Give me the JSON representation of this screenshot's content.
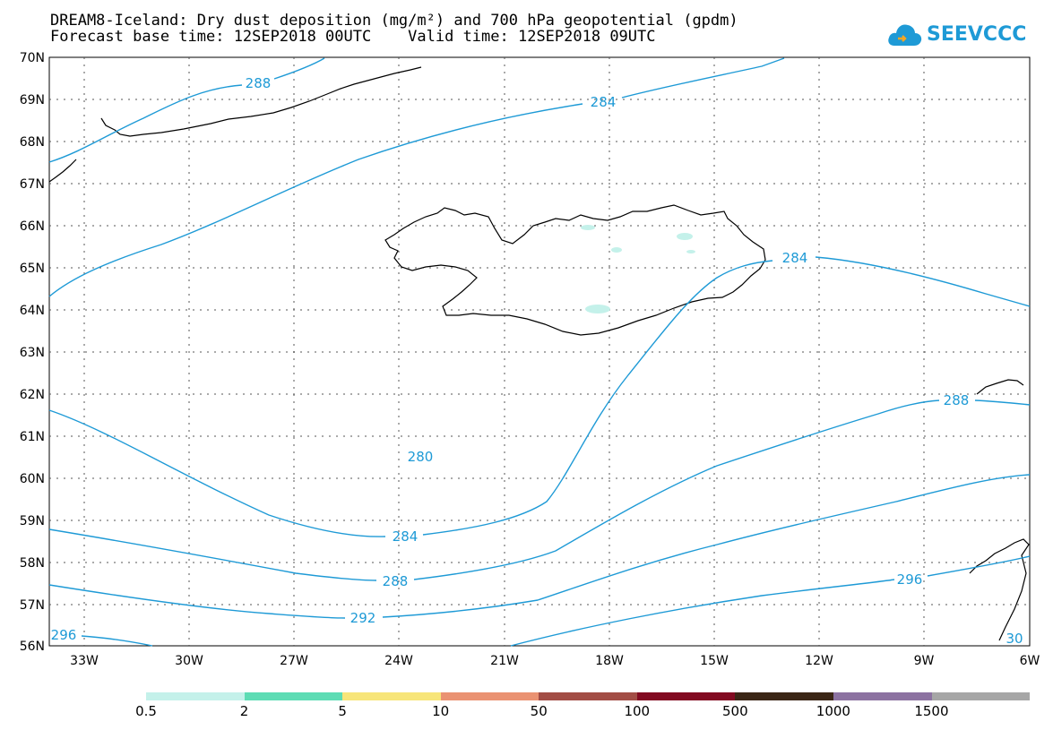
{
  "title_line1": "DREAM8-Iceland: Dry dust deposition (mg/m²) and 700 hPa geopotential (gpdm)",
  "title_line2": "Forecast base time: 12SEP2018 00UTC    Valid time: 12SEP2018 09UTC",
  "logo": {
    "text": "SEEVCCC",
    "icon": "cloud-icon"
  },
  "map": {
    "lat_labels": [
      "70N",
      "69N",
      "68N",
      "67N",
      "66N",
      "65N",
      "64N",
      "63N",
      "62N",
      "61N",
      "60N",
      "59N",
      "58N",
      "57N",
      "56N"
    ],
    "lon_labels": [
      "33W",
      "30W",
      "27W",
      "24W",
      "21W",
      "18W",
      "15W",
      "12W",
      "9W",
      "6W"
    ],
    "contour_color": "#1e9ad6",
    "contour_labels": [
      "288",
      "284",
      "284",
      "288",
      "280",
      "284",
      "288",
      "292",
      "296",
      "296",
      "30"
    ]
  },
  "legend": {
    "colors": [
      "#c4f1ea",
      "#5ddcb4",
      "#f7e579",
      "#ea9272",
      "#a24d45",
      "#820a21",
      "#3b2616",
      "#8c72a1",
      "#a6a6a6"
    ],
    "labels": [
      "0.5",
      "2",
      "5",
      "10",
      "50",
      "100",
      "500",
      "1000",
      "1500"
    ]
  }
}
